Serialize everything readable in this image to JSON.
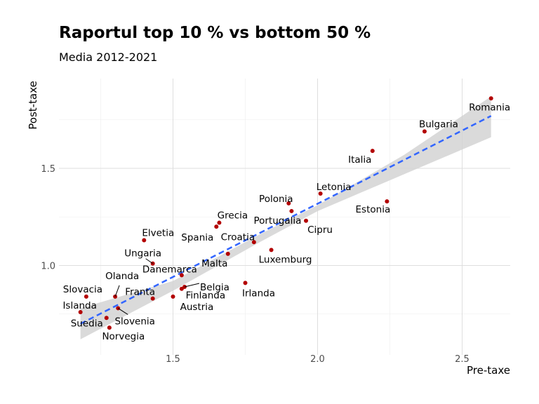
{
  "chart_data": {
    "type": "scatter",
    "title": "Raportul top 10 % vs bottom 50 %",
    "subtitle": "Media 2012-2021",
    "xlabel": "Pre-taxe",
    "ylabel": "Post-taxe",
    "xlim": [
      1.1,
      2.67
    ],
    "ylim": [
      0.57,
      1.92
    ],
    "xticks": [
      1.5,
      2.0,
      2.5
    ],
    "yticks": [
      1.0,
      1.5
    ],
    "grid": true,
    "point_color": "#b30000",
    "trend_color": "#3366ff",
    "band_color": "#d3d3d3",
    "trend": {
      "x": [
        1.18,
        2.6
      ],
      "y": [
        0.7,
        1.77
      ]
    },
    "band": {
      "upper": [
        [
          1.18,
          0.78
        ],
        [
          1.5,
          0.92
        ],
        [
          1.8,
          1.16
        ],
        [
          2.0,
          1.31
        ],
        [
          2.3,
          1.57
        ],
        [
          2.6,
          1.87
        ]
      ],
      "lower": [
        [
          1.18,
          0.62
        ],
        [
          1.5,
          0.87
        ],
        [
          1.8,
          1.12
        ],
        [
          2.0,
          1.28
        ],
        [
          2.3,
          1.47
        ],
        [
          2.6,
          1.66
        ]
      ]
    },
    "points": [
      {
        "name": "Romania",
        "x": 2.6,
        "y": 1.86
      },
      {
        "name": "Bulgaria",
        "x": 2.37,
        "y": 1.69
      },
      {
        "name": "Italia",
        "x": 2.19,
        "y": 1.59
      },
      {
        "name": "Estonia",
        "x": 2.24,
        "y": 1.33
      },
      {
        "name": "Letonia",
        "x": 2.01,
        "y": 1.37
      },
      {
        "name": "Polonia",
        "x": 1.9,
        "y": 1.32
      },
      {
        "name": "Portugalia",
        "x": 1.91,
        "y": 1.28
      },
      {
        "name": "Cipru",
        "x": 1.96,
        "y": 1.23
      },
      {
        "name": "Grecia",
        "x": 1.66,
        "y": 1.22
      },
      {
        "name": "Spania",
        "x": 1.65,
        "y": 1.2
      },
      {
        "name": "Croatia",
        "x": 1.78,
        "y": 1.12
      },
      {
        "name": "Luxemburg",
        "x": 1.84,
        "y": 1.08
      },
      {
        "name": "Malta",
        "x": 1.69,
        "y": 1.06
      },
      {
        "name": "Elvetia",
        "x": 1.4,
        "y": 1.13
      },
      {
        "name": "Ungaria",
        "x": 1.43,
        "y": 1.01
      },
      {
        "name": "Danemarca",
        "x": 1.53,
        "y": 0.95
      },
      {
        "name": "Irlanda",
        "x": 1.75,
        "y": 0.91
      },
      {
        "name": "Belgia",
        "x": 1.54,
        "y": 0.89
      },
      {
        "name": "Finlanda",
        "x": 1.53,
        "y": 0.88
      },
      {
        "name": "Franta",
        "x": 1.43,
        "y": 0.83
      },
      {
        "name": "Austria",
        "x": 1.5,
        "y": 0.84
      },
      {
        "name": "Olanda",
        "x": 1.3,
        "y": 0.84
      },
      {
        "name": "Slovacia",
        "x": 1.2,
        "y": 0.84
      },
      {
        "name": "Islanda",
        "x": 1.18,
        "y": 0.76
      },
      {
        "name": "Slovenia",
        "x": 1.31,
        "y": 0.78
      },
      {
        "name": "Suedia",
        "x": 1.27,
        "y": 0.73
      },
      {
        "name": "Norvegia",
        "x": 1.28,
        "y": 0.68
      }
    ]
  }
}
